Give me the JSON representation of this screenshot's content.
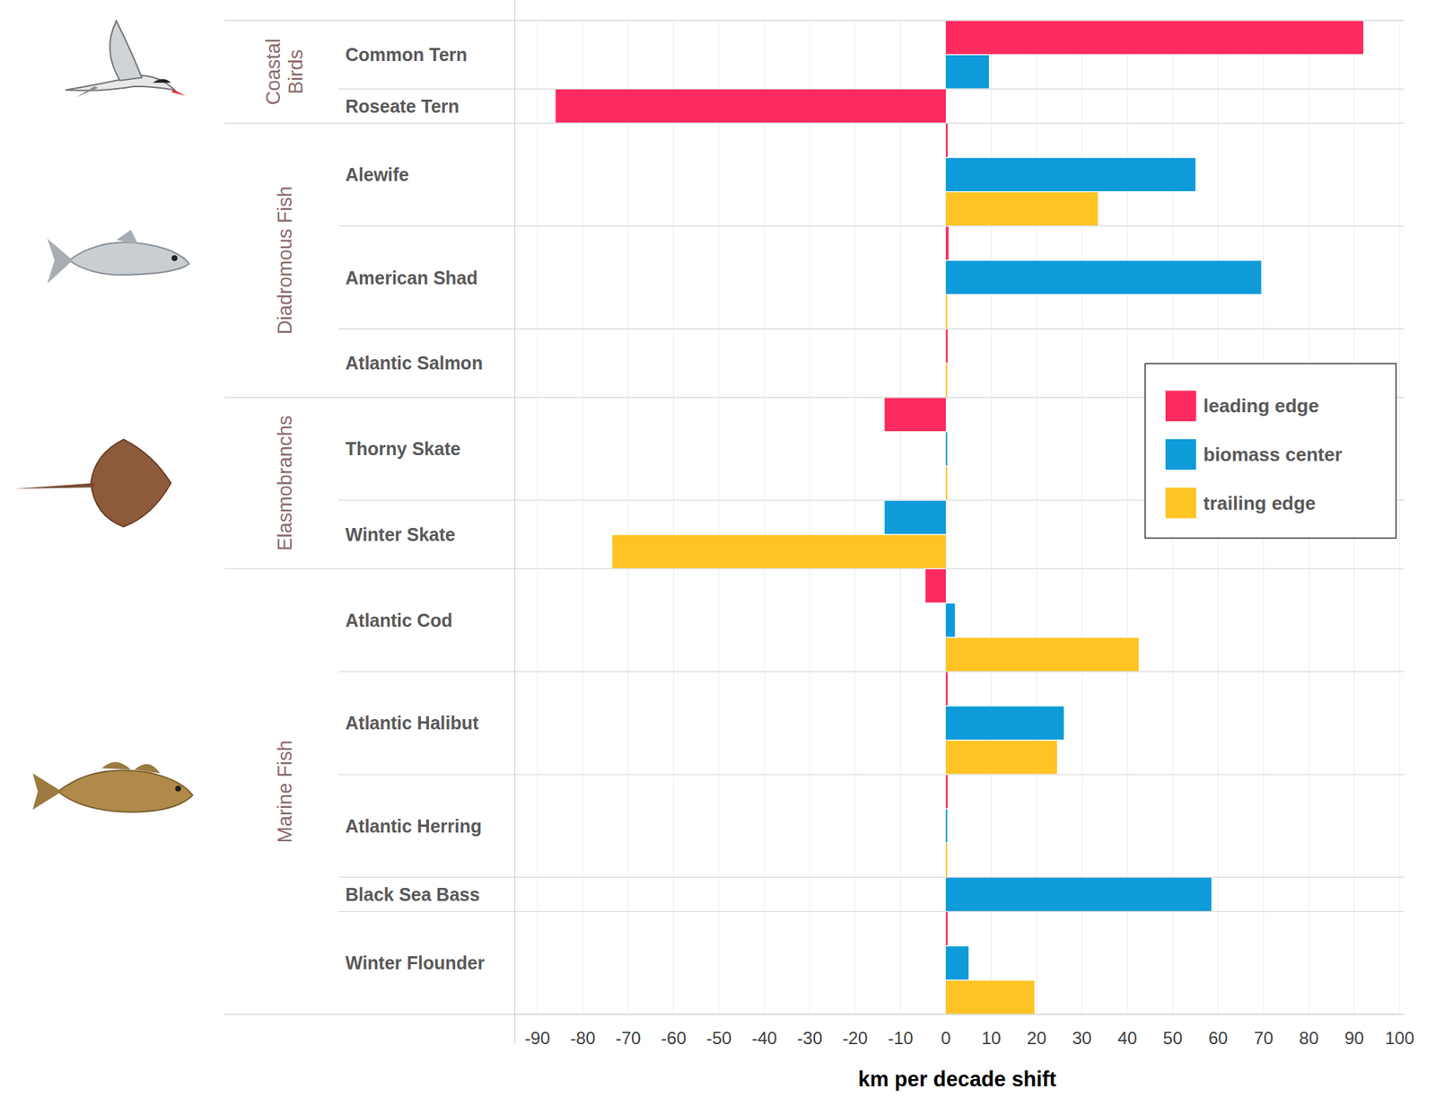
{
  "chart_data": {
    "type": "bar",
    "orientation": "horizontal",
    "x_label": "km per decade shift",
    "categories": [
      "Common Tern",
      "Roseate Tern",
      "Alewife",
      "American Shad",
      "Atlantic Salmon",
      "Thorny Skate",
      "Winter Skate",
      "Atlantic Cod",
      "Atlantic Halibut",
      "Atlantic Herring",
      "Black Sea Bass",
      "Winter Flounder"
    ],
    "category_groups": [
      "Coastal Birds",
      "Coastal Birds",
      "Diadromous Fish",
      "Diadromous Fish",
      "Diadromous Fish",
      "Elasmobranchs",
      "Elasmobranchs",
      "Marine Fish",
      "Marine Fish",
      "Marine Fish",
      "Marine Fish",
      "Marine Fish"
    ],
    "series": [
      {
        "name": "leading edge",
        "color": "#ff2a5f",
        "values": [
          92,
          -86,
          0.4,
          0.6,
          0.4,
          -13.5,
          null,
          -4.5,
          0.4,
          0.4,
          null,
          0.4
        ]
      },
      {
        "name": "biomass center",
        "color": "#0e9bd9",
        "values": [
          9.5,
          null,
          55,
          69.5,
          null,
          0.3,
          -13.5,
          2,
          26,
          0.3,
          58.5,
          5
        ]
      },
      {
        "name": "trailing edge",
        "color": "#fec423",
        "values": [
          null,
          null,
          33.5,
          0.3,
          0.3,
          0.3,
          -73.5,
          42.5,
          24.5,
          0.3,
          null,
          19.5
        ]
      }
    ],
    "xlim": [
      -95,
      100
    ],
    "xticks": [
      -90,
      -80,
      -70,
      -60,
      -50,
      -40,
      -30,
      -20,
      -10,
      0,
      10,
      20,
      30,
      40,
      50,
      60,
      70,
      80,
      90,
      100
    ],
    "grid": true,
    "legend": "right"
  }
}
